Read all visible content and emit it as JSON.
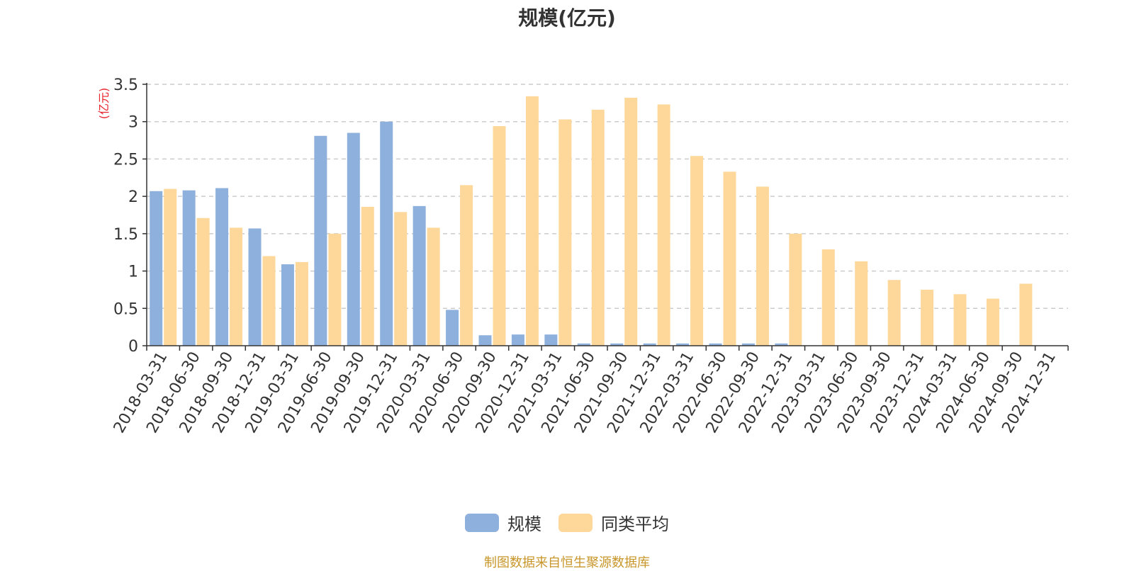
{
  "chart_data": {
    "type": "bar",
    "title": "规模(亿元)",
    "ylabel": "(亿元)",
    "xlabel": "",
    "ylim": [
      0,
      3.5
    ],
    "yticks": [
      "0",
      "0.5",
      "1",
      "1.5",
      "2",
      "2.5",
      "3",
      "3.5"
    ],
    "grid": true,
    "legend_position": "bottom",
    "categories": [
      "2018-03-31",
      "2018-06-30",
      "2018-09-30",
      "2018-12-31",
      "2019-03-31",
      "2019-06-30",
      "2019-09-30",
      "2019-12-31",
      "2020-03-31",
      "2020-06-30",
      "2020-09-30",
      "2020-12-31",
      "2021-03-31",
      "2021-06-30",
      "2021-09-30",
      "2021-12-31",
      "2022-03-31",
      "2022-06-30",
      "2022-09-30",
      "2022-12-31",
      "2023-03-31",
      "2023-06-30",
      "2023-09-30",
      "2023-12-31",
      "2024-03-31",
      "2024-06-30",
      "2024-09-30",
      "2024-12-31"
    ],
    "series": [
      {
        "name": "规模",
        "color": "#8eb0dc",
        "values": [
          2.07,
          2.08,
          2.11,
          1.57,
          1.09,
          2.81,
          2.85,
          3.0,
          1.87,
          0.48,
          0.14,
          0.15,
          0.15,
          0.03,
          0.03,
          0.03,
          0.03,
          0.03,
          0.03,
          0.03,
          null,
          null,
          null,
          null,
          null,
          null,
          null,
          null
        ]
      },
      {
        "name": "同类平均",
        "color": "#fdd89a",
        "values": [
          2.1,
          1.71,
          1.58,
          1.2,
          1.12,
          1.5,
          1.86,
          1.79,
          1.58,
          2.15,
          2.94,
          3.34,
          3.03,
          3.16,
          3.32,
          3.23,
          2.54,
          2.33,
          2.13,
          1.5,
          1.29,
          1.13,
          0.88,
          0.75,
          0.69,
          0.63,
          0.83,
          null
        ]
      }
    ]
  },
  "source_note": "制图数据来自恒生聚源数据库"
}
